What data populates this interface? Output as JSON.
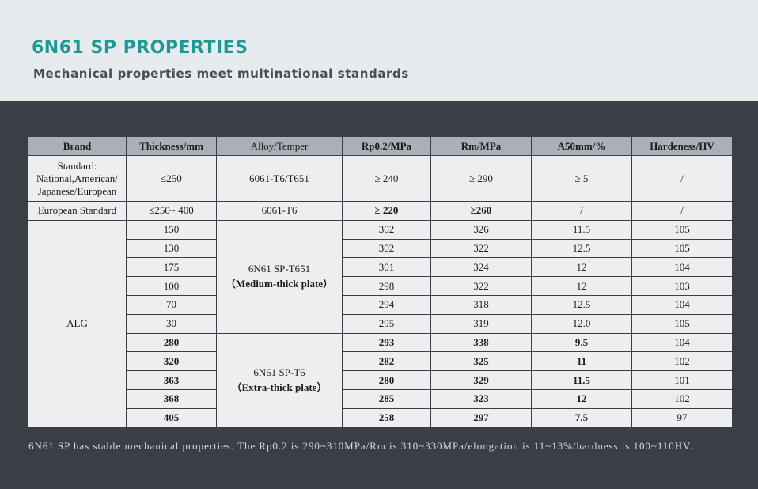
{
  "header": {
    "title": "6N61 SP PROPERTIES",
    "subtitle": "Mechanical properties meet multinational standards"
  },
  "table": {
    "columns": [
      "Brand",
      "Thickness/mm",
      "Alloy/Temper",
      "Rp0.2/MPa",
      "Rm/MPa",
      "A50mm/%",
      "Hardeness/HV"
    ],
    "standard_row": {
      "brand": "Standard: National,American/ Japanese/European",
      "thickness": "≤250",
      "alloy": "6061-T6/T651",
      "rp": "≥ 240",
      "rm": "≥ 290",
      "a50": "≥ 5",
      "hv": "/"
    },
    "european_row": {
      "brand": "European Standard",
      "thickness": "≤250~ 400",
      "alloy": "6061-T6",
      "rp": "≥ 220",
      "rm": "≥260",
      "a50": "/",
      "hv": "/"
    },
    "alg_brand": "ALG",
    "medium_alloy": "6N61 SP-T651",
    "medium_note": "（Medium-thick plate）",
    "extra_alloy": "6N61 SP-T6",
    "extra_note": "（Extra-thick plate）",
    "alg_rows": [
      {
        "thickness": "150",
        "rp": "302",
        "rm": "326",
        "a50": "11.5",
        "hv": "105"
      },
      {
        "thickness": "130",
        "rp": "302",
        "rm": "322",
        "a50": "12.5",
        "hv": "105"
      },
      {
        "thickness": "175",
        "rp": "301",
        "rm": "324",
        "a50": "12",
        "hv": "104"
      },
      {
        "thickness": "100",
        "rp": "298",
        "rm": "322",
        "a50": "12",
        "hv": "103"
      },
      {
        "thickness": "70",
        "rp": "294",
        "rm": "318",
        "a50": "12.5",
        "hv": "104"
      },
      {
        "thickness": "30",
        "rp": "295",
        "rm": "319",
        "a50": "12.0",
        "hv": "105"
      },
      {
        "thickness": "280",
        "rp": "293",
        "rm": "338",
        "a50": "9.5",
        "hv": "104"
      },
      {
        "thickness": "320",
        "rp": "282",
        "rm": "325",
        "a50": "11",
        "hv": "102"
      },
      {
        "thickness": "363",
        "rp": "280",
        "rm": "329",
        "a50": "11.5",
        "hv": "101"
      },
      {
        "thickness": "368",
        "rp": "285",
        "rm": "323",
        "a50": "12",
        "hv": "102"
      },
      {
        "thickness": "405",
        "rp": "258",
        "rm": "297",
        "a50": "7.5",
        "hv": "97"
      }
    ]
  },
  "footer": "6N61 SP has stable mechanical properties. The Rp0.2 is 290~310MPa/Rm is 310~330MPa/elongation is 11~13%/hardness is 100~110HV."
}
